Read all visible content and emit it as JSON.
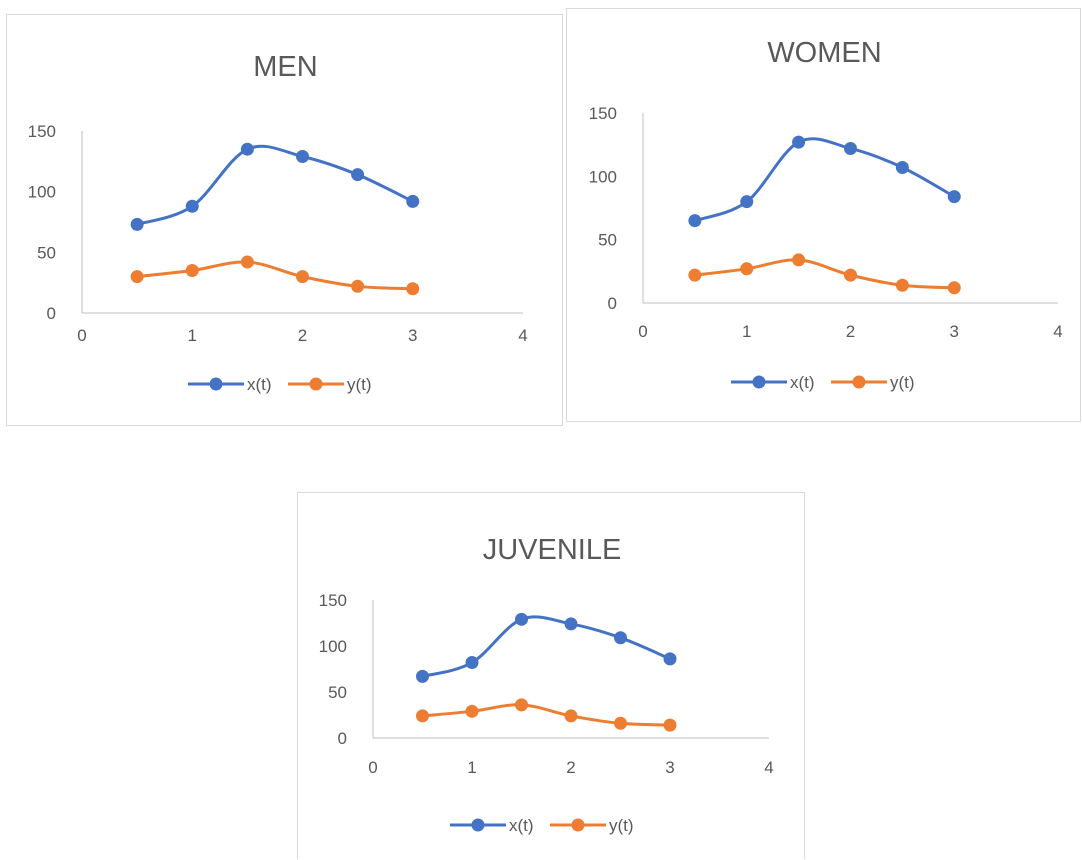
{
  "charts": [
    {
      "id": "men",
      "chart_data": {
        "type": "line",
        "title": "MEN",
        "xlim": [
          0,
          4
        ],
        "ylim": [
          0,
          150
        ],
        "x_ticks": [
          "0",
          "1",
          "2",
          "3",
          "4"
        ],
        "y_ticks": [
          "0",
          "50",
          "100",
          "150"
        ],
        "x": [
          0.5,
          1,
          1.5,
          2,
          2.5,
          3
        ],
        "series": [
          {
            "name": "x(t)",
            "color": "#4472c4",
            "values": [
              73,
              88,
              135,
              129,
              114,
              92
            ]
          },
          {
            "name": "y(t)",
            "color": "#ed7d31",
            "values": [
              30,
              35,
              42,
              30,
              22,
              20
            ]
          }
        ],
        "legend": "bottom",
        "smooth": true,
        "grid": false
      }
    },
    {
      "id": "women",
      "chart_data": {
        "type": "line",
        "title": "WOMEN",
        "xlim": [
          0,
          4
        ],
        "ylim": [
          0,
          150
        ],
        "x_ticks": [
          "0",
          "1",
          "2",
          "3",
          "4"
        ],
        "y_ticks": [
          "0",
          "50",
          "100",
          "150"
        ],
        "x": [
          0.5,
          1,
          1.5,
          2,
          2.5,
          3
        ],
        "series": [
          {
            "name": "x(t)",
            "color": "#4472c4",
            "values": [
              65,
              80,
              127,
              122,
              107,
              84
            ]
          },
          {
            "name": "y(t)",
            "color": "#ed7d31",
            "values": [
              22,
              27,
              34,
              22,
              14,
              12
            ]
          }
        ],
        "legend": "bottom",
        "smooth": true,
        "grid": false
      }
    },
    {
      "id": "juvenile",
      "chart_data": {
        "type": "line",
        "title": "JUVENILE",
        "xlim": [
          0,
          4
        ],
        "ylim": [
          0,
          150
        ],
        "x_ticks": [
          "0",
          "1",
          "2",
          "3",
          "4"
        ],
        "y_ticks": [
          "0",
          "50",
          "100",
          "150"
        ],
        "x": [
          0.5,
          1,
          1.5,
          2,
          2.5,
          3
        ],
        "series": [
          {
            "name": "x(t)",
            "color": "#4472c4",
            "values": [
              67,
              82,
              129,
              124,
              109,
              86
            ]
          },
          {
            "name": "y(t)",
            "color": "#ed7d31",
            "values": [
              24,
              29,
              36,
              24,
              16,
              14
            ]
          }
        ],
        "legend": "bottom",
        "smooth": true,
        "grid": false
      }
    }
  ]
}
